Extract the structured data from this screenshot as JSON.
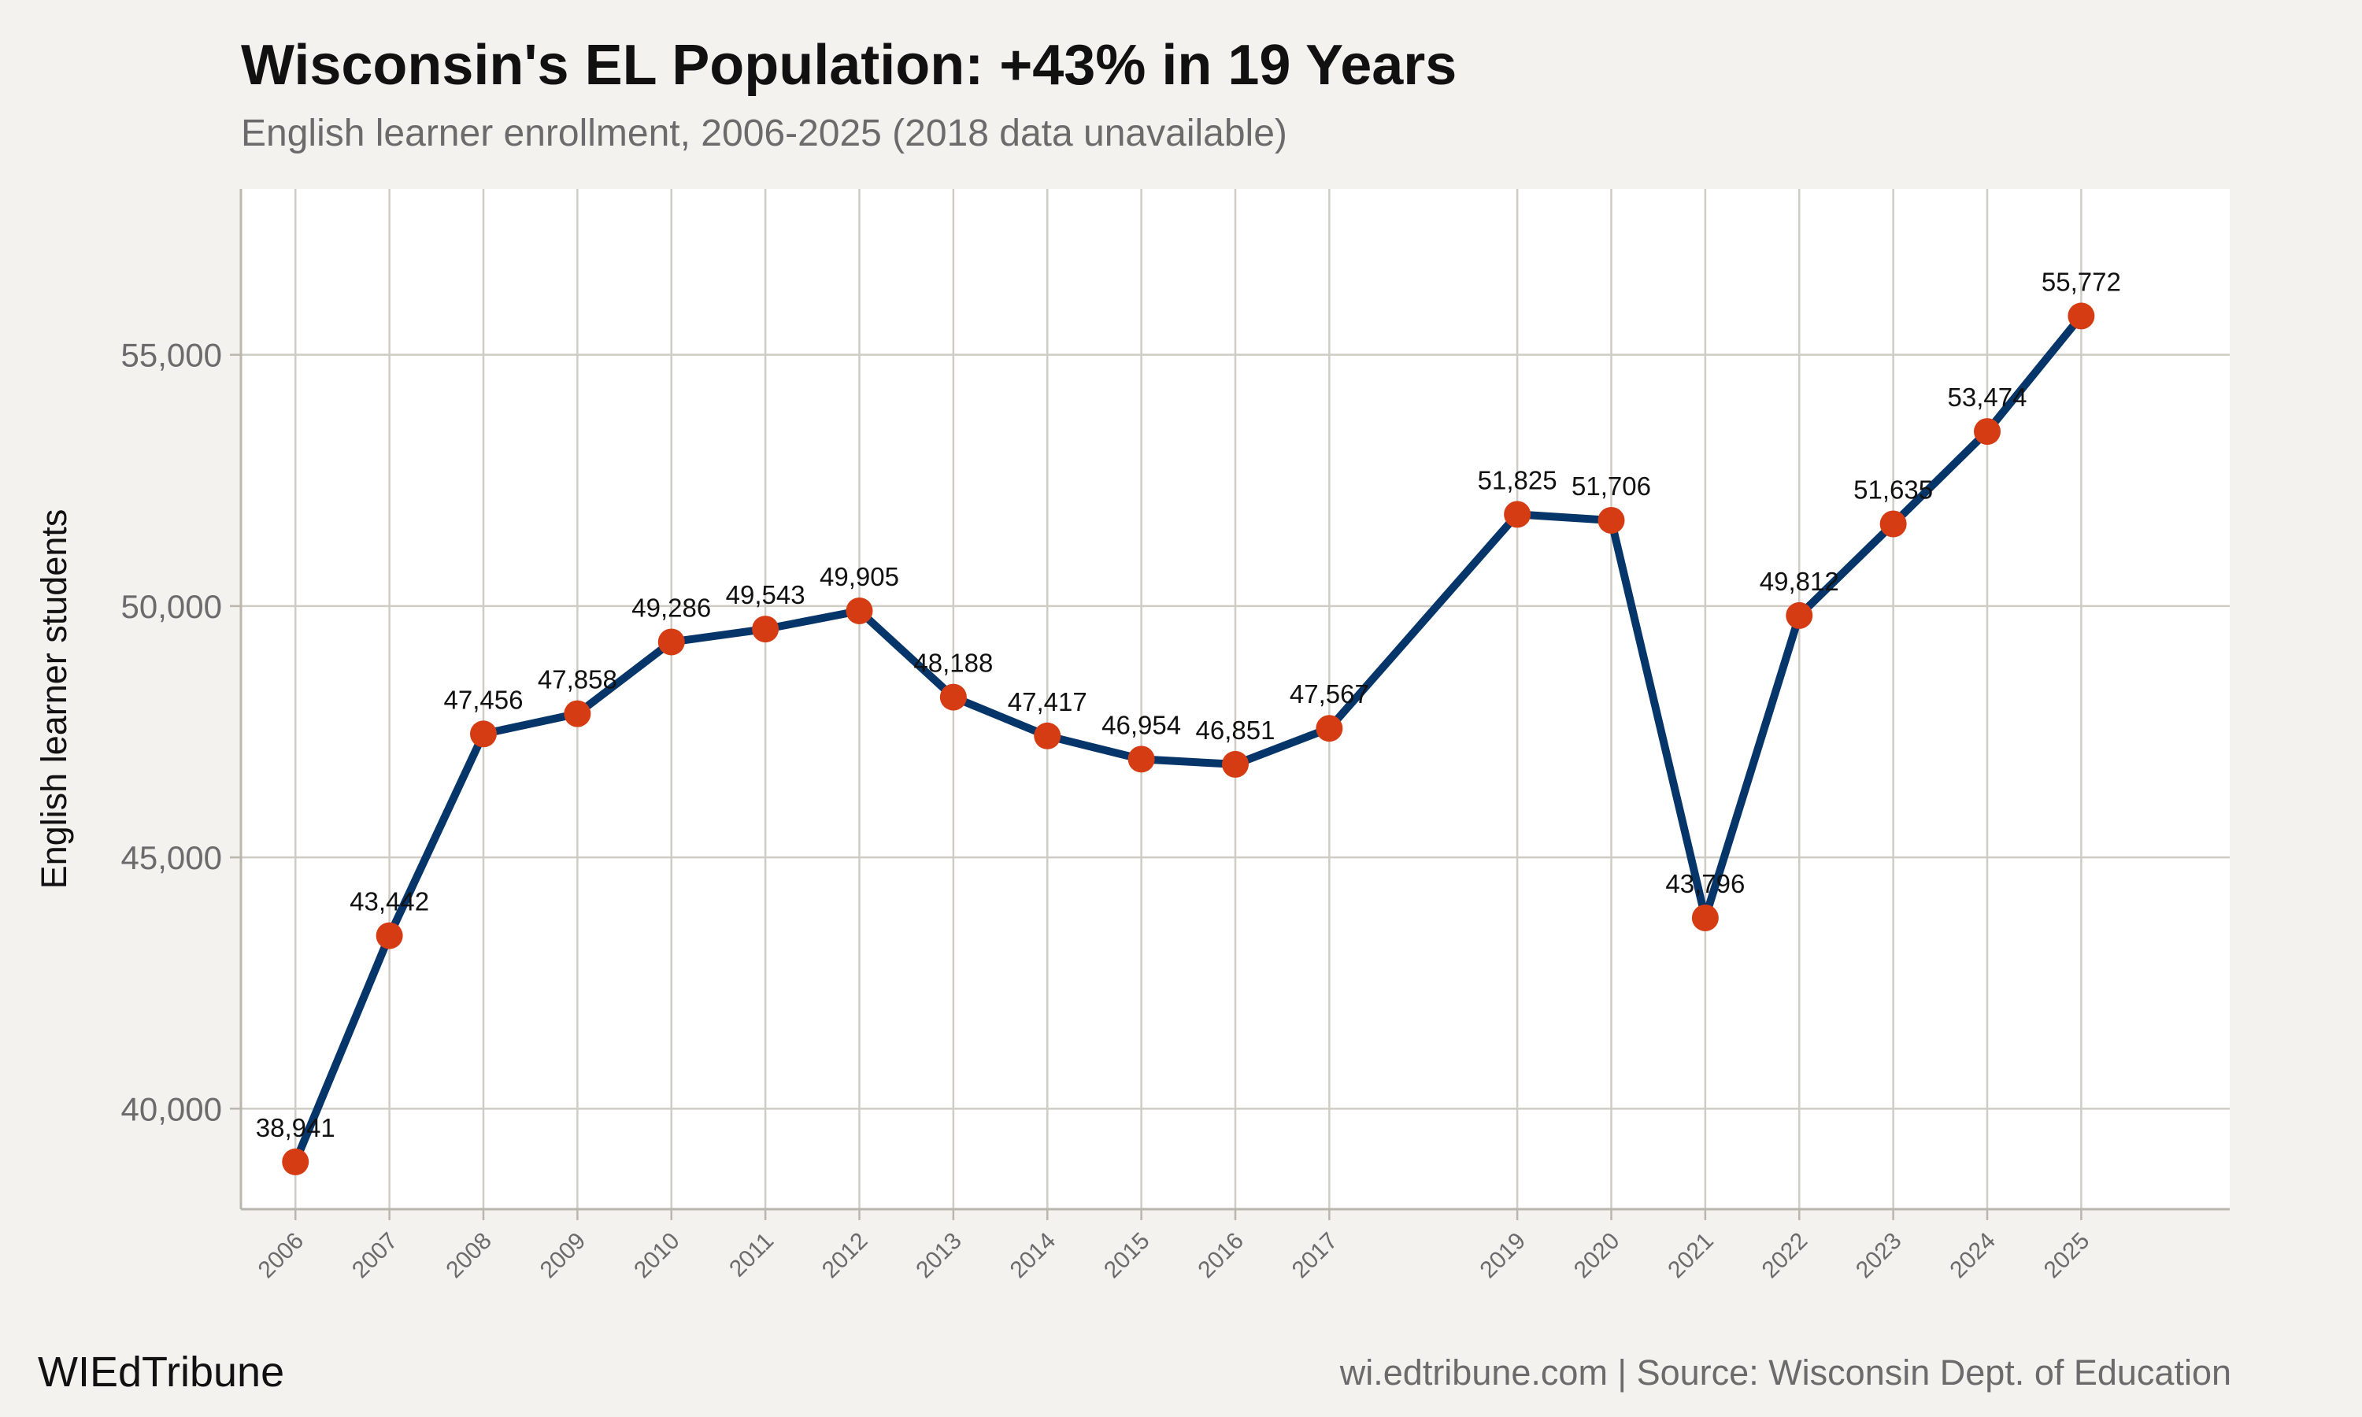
{
  "title": "Wisconsin's EL Population: +43% in 19 Years",
  "subtitle": "English learner enrollment, 2006-2025 (2018 data unavailable)",
  "footer": {
    "brand": "WIEdTribune",
    "source": "wi.edtribune.com | Source: Wisconsin Dept. of Education"
  },
  "colors": {
    "line": "#06356a",
    "point": "#d63c13",
    "grid": "#cfccc5",
    "panel": "#ffffff",
    "background": "#f4f2ee"
  },
  "chart_data": {
    "type": "line",
    "title": "Wisconsin's EL Population: +43% in 19 Years",
    "subtitle": "English learner enrollment, 2006-2025 (2018 data unavailable)",
    "xlabel": "",
    "ylabel": "English learner students",
    "x": [
      2006,
      2007,
      2008,
      2009,
      2010,
      2011,
      2012,
      2013,
      2014,
      2015,
      2016,
      2017,
      2019,
      2020,
      2021,
      2022,
      2023,
      2024,
      2025
    ],
    "values": [
      38941,
      43442,
      47456,
      47858,
      49286,
      49543,
      49905,
      48188,
      47417,
      46954,
      46851,
      47567,
      51825,
      51706,
      43796,
      49812,
      51635,
      53474,
      55772
    ],
    "data_labels": [
      "38,941",
      "43,442",
      "47,456",
      "47,858",
      "49,286",
      "49,543",
      "49,905",
      "48,188",
      "47,417",
      "46,954",
      "46,851",
      "47,567",
      "51,825",
      "51,706",
      "43,796",
      "49,812",
      "51,635",
      "53,474",
      "55,772"
    ],
    "y_ticks": [
      40000,
      45000,
      50000,
      55000
    ],
    "y_tick_labels": [
      "40,000",
      "45,000",
      "50,000",
      "55,000"
    ],
    "xlim": [
      2005.42,
      2026.58
    ],
    "ylim": [
      38000,
      58300
    ],
    "grid": true,
    "legend": "none"
  }
}
